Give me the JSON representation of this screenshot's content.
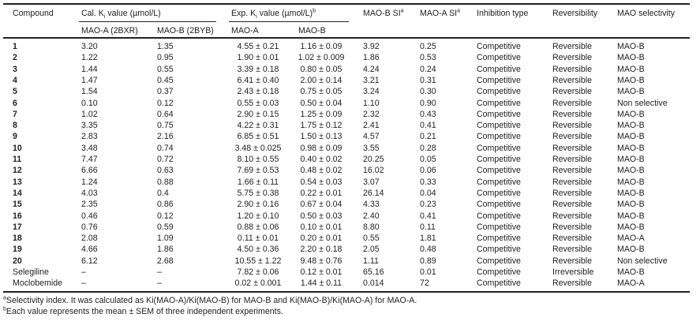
{
  "table": {
    "headers": {
      "compound": "Compound",
      "cal_group": "Cal. K",
      "cal_group_sub": "i",
      "cal_group_rest": " value (µmol/L)",
      "exp_group": "Exp. K",
      "exp_group_sub": "i",
      "exp_group_rest": " value (µmol/L)",
      "exp_group_sup": "b",
      "mao_b_si": "MAO-B SI",
      "mao_a_si": "MAO-A SI",
      "si_sup": "a",
      "inhibition_type": "Inhibition type",
      "reversibility": "Reversibility",
      "mao_selectivity": "MAO selectivity",
      "cal_mao_a": "MAO-A (2BXR)",
      "cal_mao_b": "MAO-B (2BYB)",
      "exp_mao_a": "MAO-A",
      "exp_mao_b": "MAO-B"
    },
    "rows": [
      {
        "compound": "1",
        "cal_a": "3.20",
        "cal_b": "1.35",
        "exp_a": "4.55 ± 0.21",
        "exp_b": "1.16 ± 0.09",
        "si_b": "3.92",
        "si_a": "0.25",
        "type": "Competitive",
        "rev": "Reversible",
        "sel": "MAO-B",
        "bold": true
      },
      {
        "compound": "2",
        "cal_a": "1.22",
        "cal_b": "0.95",
        "exp_a": "1.90 ± 0.01",
        "exp_b": "1.02 ± 0.009",
        "si_b": "1.86",
        "si_a": "0.53",
        "type": "Competitive",
        "rev": "Reversible",
        "sel": "MAO-B",
        "bold": true
      },
      {
        "compound": "3",
        "cal_a": "1.44",
        "cal_b": "0.55",
        "exp_a": "3.39 ± 0.18",
        "exp_b": "0.80 ± 0.05",
        "si_b": "4.24",
        "si_a": "0.24",
        "type": "Competitive",
        "rev": "Reversible",
        "sel": "MAO-B",
        "bold": true
      },
      {
        "compound": "4",
        "cal_a": "1.47",
        "cal_b": "0.45",
        "exp_a": "6.41 ± 0.40",
        "exp_b": "2.00 ± 0.14",
        "si_b": "3.21",
        "si_a": "0.31",
        "type": "Competitive",
        "rev": "Reversible",
        "sel": "MAO-B",
        "bold": true
      },
      {
        "compound": "5",
        "cal_a": "1.54",
        "cal_b": "0.37",
        "exp_a": "2.43 ± 0.18",
        "exp_b": "0.75 ± 0.05",
        "si_b": "3.24",
        "si_a": "0.30",
        "type": "Competitive",
        "rev": "Reversible",
        "sel": "MAO-B",
        "bold": true
      },
      {
        "compound": "6",
        "cal_a": "0.10",
        "cal_b": "0.12",
        "exp_a": "0.55 ± 0.03",
        "exp_b": "0.50 ± 0.04",
        "si_b": "1.10",
        "si_a": "0.90",
        "type": "Competitive",
        "rev": "Reversible",
        "sel": "Non selective",
        "bold": true
      },
      {
        "compound": "7",
        "cal_a": "1.02",
        "cal_b": "0.64",
        "exp_a": "2.90 ± 0.15",
        "exp_b": "1.25 ± 0.09",
        "si_b": "2.32",
        "si_a": "0.43",
        "type": "Competitive",
        "rev": "Reversible",
        "sel": "MAO-B",
        "bold": true
      },
      {
        "compound": "8",
        "cal_a": "3.35",
        "cal_b": "0.75",
        "exp_a": "4.22 ± 0.31",
        "exp_b": "1.75 ± 0.12",
        "si_b": "2.41",
        "si_a": "0.41",
        "type": "Competitive",
        "rev": "Reversible",
        "sel": "MAO-B",
        "bold": true
      },
      {
        "compound": "9",
        "cal_a": "2.83",
        "cal_b": "2.16",
        "exp_a": "6.85 ± 0.51",
        "exp_b": "1.50 ± 0.13",
        "si_b": "4.57",
        "si_a": "0.21",
        "type": "Competitive",
        "rev": "Reversible",
        "sel": "MAO-B",
        "bold": true
      },
      {
        "compound": "10",
        "cal_a": "3.48",
        "cal_b": "0.74",
        "exp_a": "3.48 ± 0.025",
        "exp_b": "0.98 ± 0.09",
        "si_b": "3.55",
        "si_a": "0.28",
        "type": "Competitive",
        "rev": "Reversible",
        "sel": "MAO-B",
        "bold": true
      },
      {
        "compound": "11",
        "cal_a": "7.47",
        "cal_b": "0.72",
        "exp_a": "8.10 ± 0.55",
        "exp_b": "0.40 ± 0.02",
        "si_b": "20.25",
        "si_a": "0.05",
        "type": "Competitive",
        "rev": "Reversible",
        "sel": "MAO-B",
        "bold": true
      },
      {
        "compound": "12",
        "cal_a": "6.66",
        "cal_b": "0.63",
        "exp_a": "7.69 ± 0.53",
        "exp_b": "0.48 ± 0.02",
        "si_b": "16.02",
        "si_a": "0.06",
        "type": "Competitive",
        "rev": "Reversible",
        "sel": "MAO-B",
        "bold": true
      },
      {
        "compound": "13",
        "cal_a": "1.24",
        "cal_b": "0.88",
        "exp_a": "1.66 ± 0.11",
        "exp_b": "0.54 ± 0.03",
        "si_b": "3.07",
        "si_a": "0.33",
        "type": "Competitive",
        "rev": "Reversible",
        "sel": "MAO-B",
        "bold": true
      },
      {
        "compound": "14",
        "cal_a": "4.03",
        "cal_b": "0.4",
        "exp_a": "5.75 ± 0.38",
        "exp_b": "0.22 ± 0.01",
        "si_b": "26.14",
        "si_a": "0.04",
        "type": "Competitive",
        "rev": "Reversible",
        "sel": "MAO-B",
        "bold": true
      },
      {
        "compound": "15",
        "cal_a": "2.35",
        "cal_b": "0.86",
        "exp_a": "2.90 ± 0.16",
        "exp_b": "0.67 ± 0.04",
        "si_b": "4.33",
        "si_a": "0.23",
        "type": "Competitive",
        "rev": "Reversible",
        "sel": "MAO-B",
        "bold": true
      },
      {
        "compound": "16",
        "cal_a": "0.46",
        "cal_b": "0.12",
        "exp_a": "1.20 ± 0.10",
        "exp_b": "0.50 ± 0.03",
        "si_b": "2.40",
        "si_a": "0.41",
        "type": "Competitive",
        "rev": "Reversible",
        "sel": "MAO-B",
        "bold": true
      },
      {
        "compound": "17",
        "cal_a": "0.76",
        "cal_b": "0.59",
        "exp_a": "0.88 ± 0.06",
        "exp_b": "0.10 ± 0.01",
        "si_b": "8.80",
        "si_a": "0.11",
        "type": "Competitive",
        "rev": "Reversible",
        "sel": "MAO-B",
        "bold": true
      },
      {
        "compound": "18",
        "cal_a": "2.08",
        "cal_b": "1.09",
        "exp_a": "0.11 ± 0.01",
        "exp_b": "0.20 ± 0.01",
        "si_b": "0.55",
        "si_a": "1.81",
        "type": "Competitive",
        "rev": "Reversible",
        "sel": "MAO-A",
        "bold": true
      },
      {
        "compound": "19",
        "cal_a": "4.66",
        "cal_b": "1.86",
        "exp_a": "4.50 ± 0.36",
        "exp_b": "2.20 ± 0.18",
        "si_b": "2.05",
        "si_a": "0.48",
        "type": "Competitive",
        "rev": "Reversible",
        "sel": "MAO-B",
        "bold": true
      },
      {
        "compound": "20",
        "cal_a": "6.12",
        "cal_b": "2.68",
        "exp_a": "10.55 ± 1.22",
        "exp_b": "9.48 ± 0.76",
        "si_b": "1.11",
        "si_a": "0.89",
        "type": "Competitive",
        "rev": "Reversible",
        "sel": "Non selective",
        "bold": true
      },
      {
        "compound": "Selegiline",
        "cal_a": "–",
        "cal_b": "–",
        "exp_a": "7.82 ± 0.06",
        "exp_b": "0.12 ± 0.01",
        "si_b": "65.16",
        "si_a": "0.01",
        "type": "Competitive",
        "rev": "Irreversible",
        "sel": "MAO-B",
        "bold": false
      },
      {
        "compound": "Moclobemide",
        "cal_a": "–",
        "cal_b": "–",
        "exp_a": "0.02 ± 0.001",
        "exp_b": "1.44 ± 0.11",
        "si_b": "0.014",
        "si_a": "72",
        "type": "Competitive",
        "rev": "Reversible",
        "sel": "MAO-A",
        "bold": false
      }
    ]
  },
  "footnotes": {
    "a_mark": "a",
    "a_text": "Selectivity index. It was calculated as Ki(MAO-A)/Ki(MAO-B) for MAO-B and Ki(MAO-B)/Ki(MAO-A) for MAO-A.",
    "b_mark": "b",
    "b_text": "Each value represents the mean ± SEM of three independent experiments."
  }
}
